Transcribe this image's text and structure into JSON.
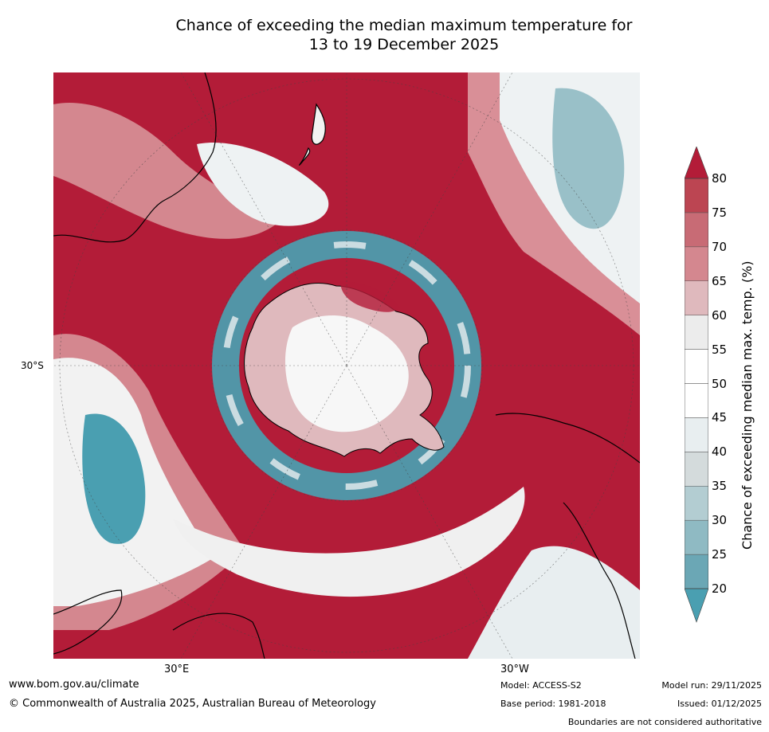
{
  "title": {
    "line1": "Chance of exceeding the median maximum temperature for",
    "line2": "13 to 19 December 2025"
  },
  "axis_labels": {
    "lat_30s": "30°S",
    "lon_30e": "30°E",
    "lon_30w": "30°W"
  },
  "colorbar": {
    "label": "Chance of exceeding median max. temp. (%)",
    "ticks": [
      "80",
      "75",
      "70",
      "65",
      "60",
      "55",
      "50",
      "45",
      "40",
      "35",
      "30",
      "25",
      "20"
    ],
    "colors": [
      "#4a9fb1",
      "#6ba7b5",
      "#8fbac3",
      "#b3cdd2",
      "#d4dbdc",
      "#e8eef0",
      "#ffffff",
      "#ffffff",
      "#ececec",
      "#dfb9bd",
      "#d4878f",
      "#c86b75",
      "#bc4552",
      "#b31c38"
    ]
  },
  "footer": {
    "website": "www.bom.gov.au/climate",
    "copyright": "© Commonwealth of Australia 2025, Australian Bureau of Meteorology",
    "model": "Model: ACCESS-S2",
    "base_period": "Base period: 1981-2018",
    "model_run": "Model run: 29/11/2025",
    "issued": "Issued: 01/12/2025",
    "disclaimer": "Boundaries are not considered authoritative"
  }
}
